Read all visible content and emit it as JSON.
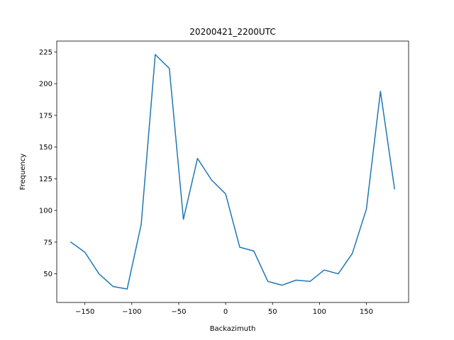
{
  "chart_data": {
    "type": "line",
    "title": "20200421_2200UTC",
    "xlabel": "Backazimuth",
    "ylabel": "Frequency",
    "xlim": [
      -180,
      195
    ],
    "ylim": [
      27.4,
      233.6
    ],
    "xticks": [
      -150,
      -100,
      -50,
      0,
      50,
      100,
      150
    ],
    "yticks": [
      50,
      75,
      100,
      125,
      150,
      175,
      200,
      225
    ],
    "grid": false,
    "series": [
      {
        "color": "#1f77b4",
        "x": [
          -165,
          -150,
          -135,
          -120,
          -105,
          -90,
          -75,
          -60,
          -45,
          -30,
          -15,
          0,
          15,
          30,
          45,
          60,
          75,
          90,
          105,
          120,
          135,
          150,
          165,
          180
        ],
        "y": [
          75,
          67,
          50,
          40,
          38,
          89,
          223,
          212,
          93,
          141,
          124,
          113,
          71,
          68,
          44,
          41,
          45,
          44,
          53,
          50,
          66,
          101,
          194,
          117
        ]
      }
    ]
  }
}
